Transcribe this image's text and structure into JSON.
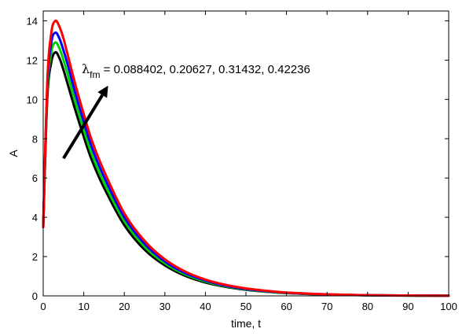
{
  "chart_data": {
    "type": "line",
    "title": "",
    "xlabel": "time, t",
    "ylabel": "A",
    "xlim": [
      0,
      100
    ],
    "ylim": [
      0,
      14.5
    ],
    "x_ticks": [
      0,
      10,
      20,
      30,
      40,
      50,
      60,
      70,
      80,
      90,
      100
    ],
    "y_ticks": [
      0,
      2,
      4,
      6,
      8,
      10,
      12,
      14
    ],
    "grid": false,
    "legend": "none",
    "annotation": {
      "symbol": "λ",
      "subscript": "fm",
      "text": " =  0.088402, 0.20627, 0.31432, 0.42236"
    },
    "x": [
      0,
      1,
      2,
      3,
      4,
      5,
      6,
      8,
      10,
      12,
      15,
      20,
      25,
      30,
      35,
      40,
      45,
      50,
      55,
      60,
      70,
      80,
      90,
      100
    ],
    "series": [
      {
        "color": "#000000",
        "values": [
          3.5,
          10.0,
          11.9,
          12.4,
          12.1,
          11.5,
          10.8,
          9.4,
          8.1,
          6.9,
          5.5,
          3.6,
          2.35,
          1.55,
          1.02,
          0.68,
          0.46,
          0.31,
          0.21,
          0.14,
          0.065,
          0.03,
          0.015,
          0.007
        ]
      },
      {
        "color": "#00d000",
        "values": [
          3.5,
          10.3,
          12.4,
          12.9,
          12.6,
          12.0,
          11.3,
          9.8,
          8.45,
          7.2,
          5.75,
          3.8,
          2.5,
          1.65,
          1.09,
          0.73,
          0.49,
          0.33,
          0.22,
          0.15,
          0.07,
          0.032,
          0.016,
          0.008
        ]
      },
      {
        "color": "#0000ff",
        "values": [
          3.5,
          10.6,
          12.9,
          13.4,
          13.1,
          12.5,
          11.8,
          10.25,
          8.85,
          7.55,
          6.05,
          4.0,
          2.65,
          1.75,
          1.16,
          0.78,
          0.52,
          0.35,
          0.24,
          0.16,
          0.075,
          0.035,
          0.017,
          0.008
        ]
      },
      {
        "color": "#ff0000",
        "values": [
          3.5,
          10.9,
          13.4,
          14.0,
          13.7,
          13.1,
          12.3,
          10.7,
          9.25,
          7.9,
          6.35,
          4.2,
          2.8,
          1.86,
          1.24,
          0.83,
          0.56,
          0.38,
          0.26,
          0.17,
          0.08,
          0.037,
          0.018,
          0.009
        ]
      }
    ],
    "arrow": {
      "from": [
        5,
        7.0
      ],
      "to": [
        16,
        10.7
      ]
    }
  }
}
